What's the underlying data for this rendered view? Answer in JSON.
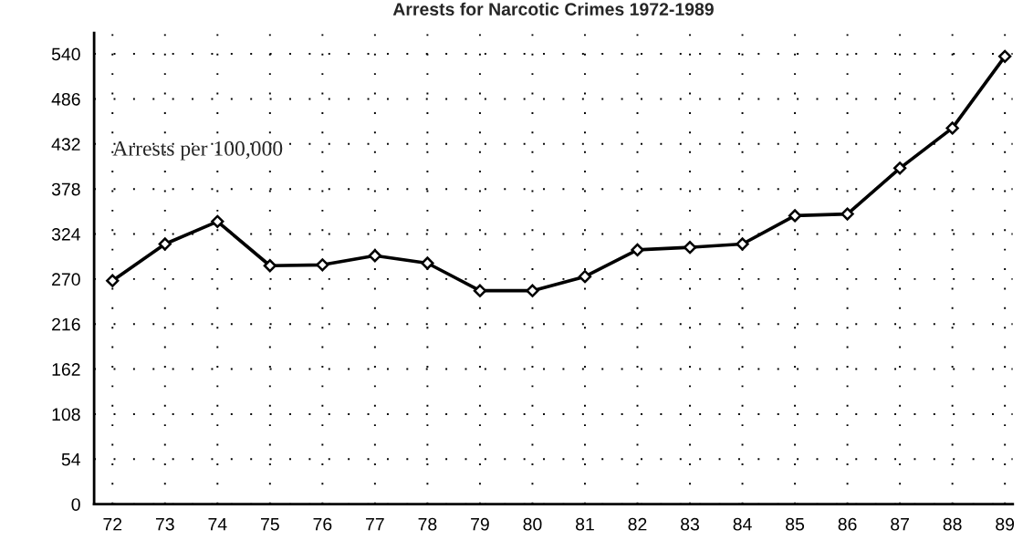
{
  "chart_data": {
    "type": "line",
    "title": "Arrests for Narcotic Crimes 1972-1989",
    "annotations": [
      "Arrests per 100,000"
    ],
    "categories": [
      "72",
      "73",
      "74",
      "75",
      "76",
      "77",
      "78",
      "79",
      "80",
      "81",
      "82",
      "83",
      "84",
      "85",
      "86",
      "87",
      "88",
      "89"
    ],
    "series": [
      {
        "color": "#000000",
        "values": [
          268,
          312,
          339,
          286,
          287,
          298,
          289,
          256,
          256,
          273,
          305,
          308,
          312,
          346,
          348,
          403,
          451,
          537
        ]
      }
    ],
    "ylim": [
      0,
      565
    ],
    "yticks": [
      0,
      54,
      108,
      162,
      216,
      270,
      324,
      378,
      432,
      486,
      540
    ],
    "grid": true,
    "marker": "diamond",
    "line_style": "solid",
    "legend": false
  }
}
